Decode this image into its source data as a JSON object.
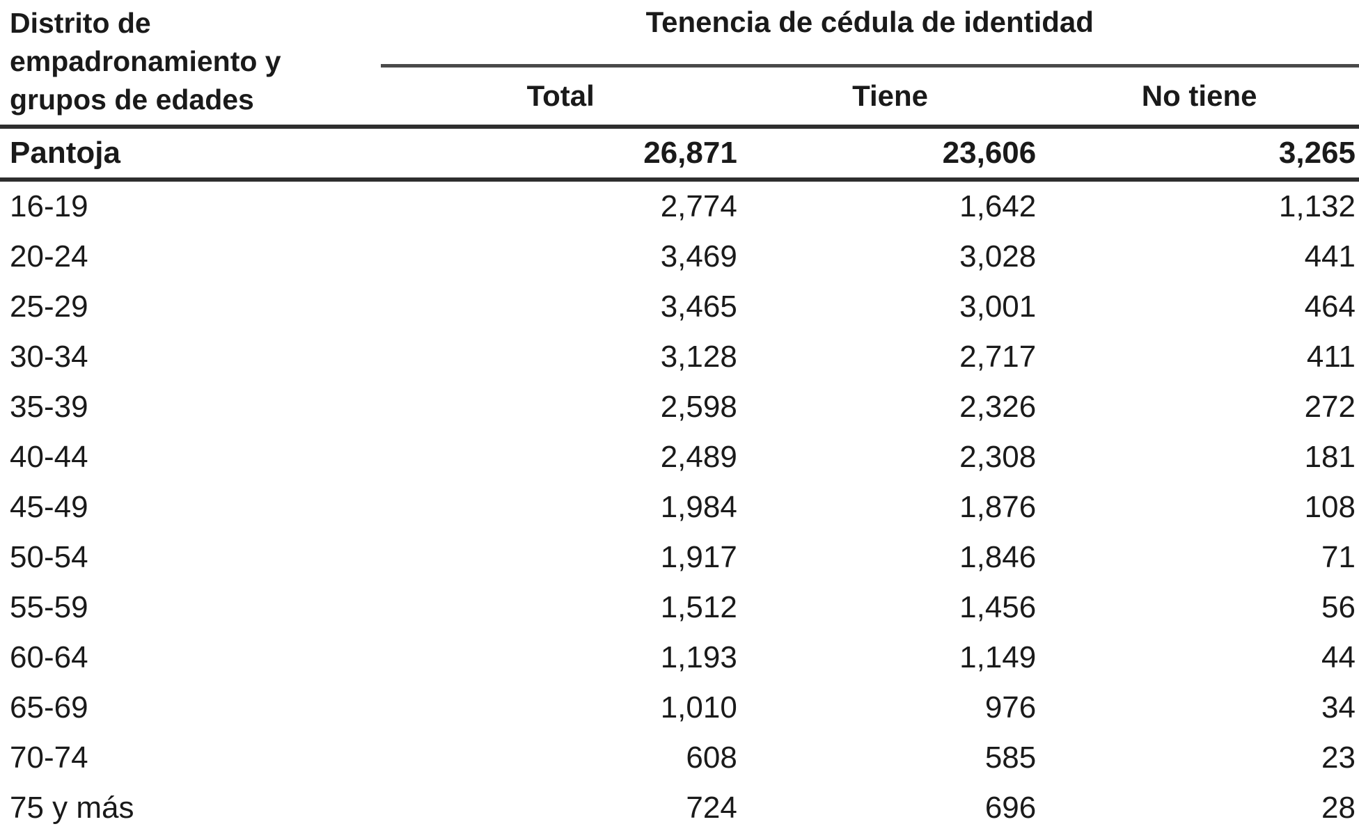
{
  "table": {
    "stub_header": "Distrito de empadronamiento y grupos de edades",
    "stub_header_lines": [
      "Distrito de",
      "empadronamiento y",
      "grupos de edades"
    ],
    "spanner_header": "Tenencia de cédula de identidad",
    "columns": [
      "Total",
      "Tiene",
      "No tiene"
    ],
    "summary_row": {
      "label": "Pantoja",
      "values": [
        "26,871",
        "23,606",
        "3,265"
      ]
    },
    "rows": [
      {
        "label": "16-19",
        "values": [
          "2,774",
          "1,642",
          "1,132"
        ]
      },
      {
        "label": "20-24",
        "values": [
          "3,469",
          "3,028",
          "441"
        ]
      },
      {
        "label": "25-29",
        "values": [
          "3,465",
          "3,001",
          "464"
        ]
      },
      {
        "label": "30-34",
        "values": [
          "3,128",
          "2,717",
          "411"
        ]
      },
      {
        "label": "35-39",
        "values": [
          "2,598",
          "2,326",
          "272"
        ]
      },
      {
        "label": "40-44",
        "values": [
          "2,489",
          "2,308",
          "181"
        ]
      },
      {
        "label": "45-49",
        "values": [
          "1,984",
          "1,876",
          "108"
        ]
      },
      {
        "label": "50-54",
        "values": [
          "1,917",
          "1,846",
          "71"
        ]
      },
      {
        "label": "55-59",
        "values": [
          "1,512",
          "1,456",
          "56"
        ]
      },
      {
        "label": "60-64",
        "values": [
          "1,193",
          "1,149",
          "44"
        ]
      },
      {
        "label": "65-69",
        "values": [
          "1,010",
          "976",
          "34"
        ]
      },
      {
        "label": "70-74",
        "values": [
          "608",
          "585",
          "23"
        ]
      },
      {
        "label": "75 y más",
        "values": [
          "724",
          "696",
          "28"
        ]
      }
    ],
    "colors": {
      "background": "#ffffff",
      "text": "#1a1a1a",
      "rule_heavy": "#2e2e2e",
      "rule_spanner": "#4a4a4a"
    }
  }
}
